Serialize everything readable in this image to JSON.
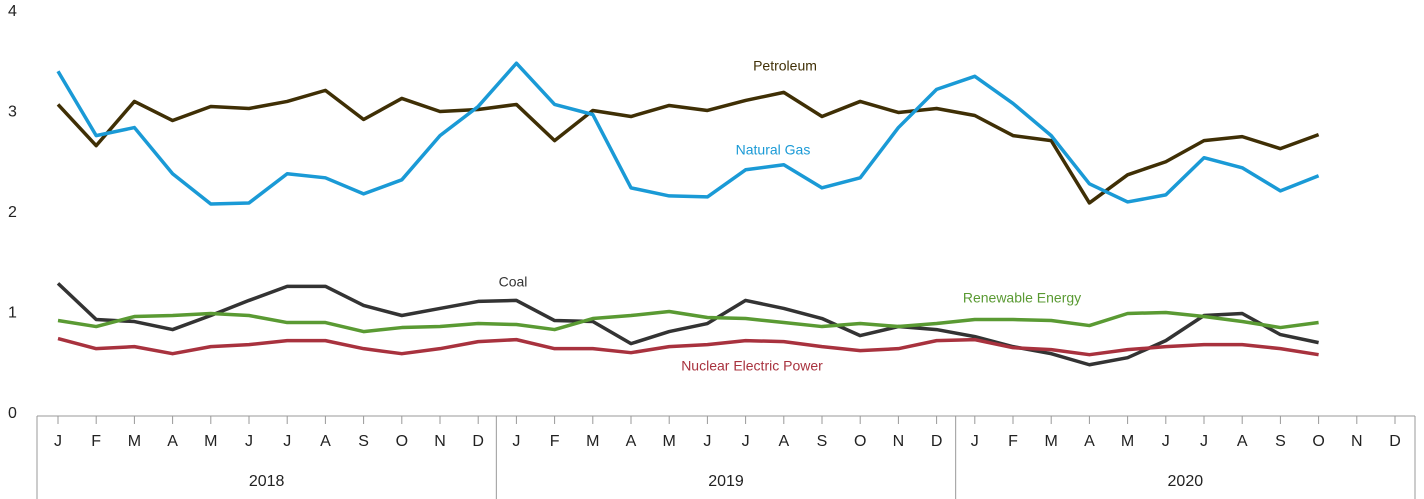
{
  "chart_data": {
    "type": "line",
    "categories": [
      "J",
      "F",
      "M",
      "A",
      "M",
      "J",
      "J",
      "A",
      "S",
      "O",
      "N",
      "D",
      "J",
      "F",
      "M",
      "A",
      "M",
      "J",
      "J",
      "A",
      "S",
      "O",
      "N",
      "D",
      "J",
      "F",
      "M",
      "A",
      "M",
      "J",
      "J",
      "A",
      "S",
      "O",
      "N",
      "D"
    ],
    "year_groups": [
      "2018",
      "2019",
      "2020"
    ],
    "ylim": [
      0,
      4
    ],
    "yticks": [
      0,
      1,
      2,
      3,
      4
    ],
    "series": [
      {
        "name": "Petroleum",
        "color": "#3f2f05",
        "values": [
          3.1,
          2.69,
          3.13,
          2.94,
          3.08,
          3.06,
          3.13,
          3.24,
          2.95,
          3.16,
          3.03,
          3.05,
          3.1,
          2.74,
          3.04,
          2.98,
          3.09,
          3.04,
          3.14,
          3.22,
          2.98,
          3.13,
          3.02,
          3.06,
          2.99,
          2.79,
          2.74,
          2.12,
          2.4,
          2.53,
          2.74,
          2.78,
          2.66,
          2.8,
          null,
          null
        ]
      },
      {
        "name": "Natural Gas",
        "color": "#1a9ad6",
        "values": [
          3.43,
          2.79,
          2.87,
          2.41,
          2.11,
          2.12,
          2.41,
          2.37,
          2.21,
          2.35,
          2.79,
          3.08,
          3.51,
          3.1,
          3.0,
          2.27,
          2.19,
          2.18,
          2.45,
          2.5,
          2.27,
          2.37,
          2.87,
          3.25,
          3.38,
          3.11,
          2.79,
          2.31,
          2.13,
          2.2,
          2.57,
          2.47,
          2.24,
          2.39,
          null,
          null
        ]
      },
      {
        "name": "Coal",
        "color": "#333333",
        "values": [
          1.32,
          0.96,
          0.94,
          0.86,
          1.0,
          1.15,
          1.29,
          1.29,
          1.1,
          1.0,
          1.07,
          1.14,
          1.15,
          0.95,
          0.94,
          0.72,
          0.84,
          0.92,
          1.15,
          1.07,
          0.97,
          0.8,
          0.89,
          0.86,
          0.79,
          0.69,
          0.62,
          0.51,
          0.58,
          0.75,
          1.0,
          1.02,
          0.81,
          0.73,
          null,
          null
        ]
      },
      {
        "name": "Renewable Energy",
        "color": "#5a9a33",
        "values": [
          0.95,
          0.89,
          0.99,
          1.0,
          1.02,
          1.0,
          0.93,
          0.93,
          0.84,
          0.88,
          0.89,
          0.92,
          0.91,
          0.86,
          0.97,
          1.0,
          1.04,
          0.98,
          0.97,
          0.93,
          0.89,
          0.92,
          0.89,
          0.92,
          0.96,
          0.96,
          0.95,
          0.9,
          1.02,
          1.03,
          0.99,
          0.94,
          0.88,
          0.93,
          null,
          null
        ]
      },
      {
        "name": "Nuclear Electric Power",
        "color": "#a8323e",
        "values": [
          0.77,
          0.67,
          0.69,
          0.62,
          0.69,
          0.71,
          0.75,
          0.75,
          0.67,
          0.62,
          0.67,
          0.74,
          0.76,
          0.67,
          0.67,
          0.63,
          0.69,
          0.71,
          0.75,
          0.74,
          0.69,
          0.65,
          0.67,
          0.75,
          0.76,
          0.68,
          0.66,
          0.61,
          0.66,
          0.69,
          0.71,
          0.71,
          0.67,
          0.61,
          null,
          null
        ]
      }
    ]
  }
}
